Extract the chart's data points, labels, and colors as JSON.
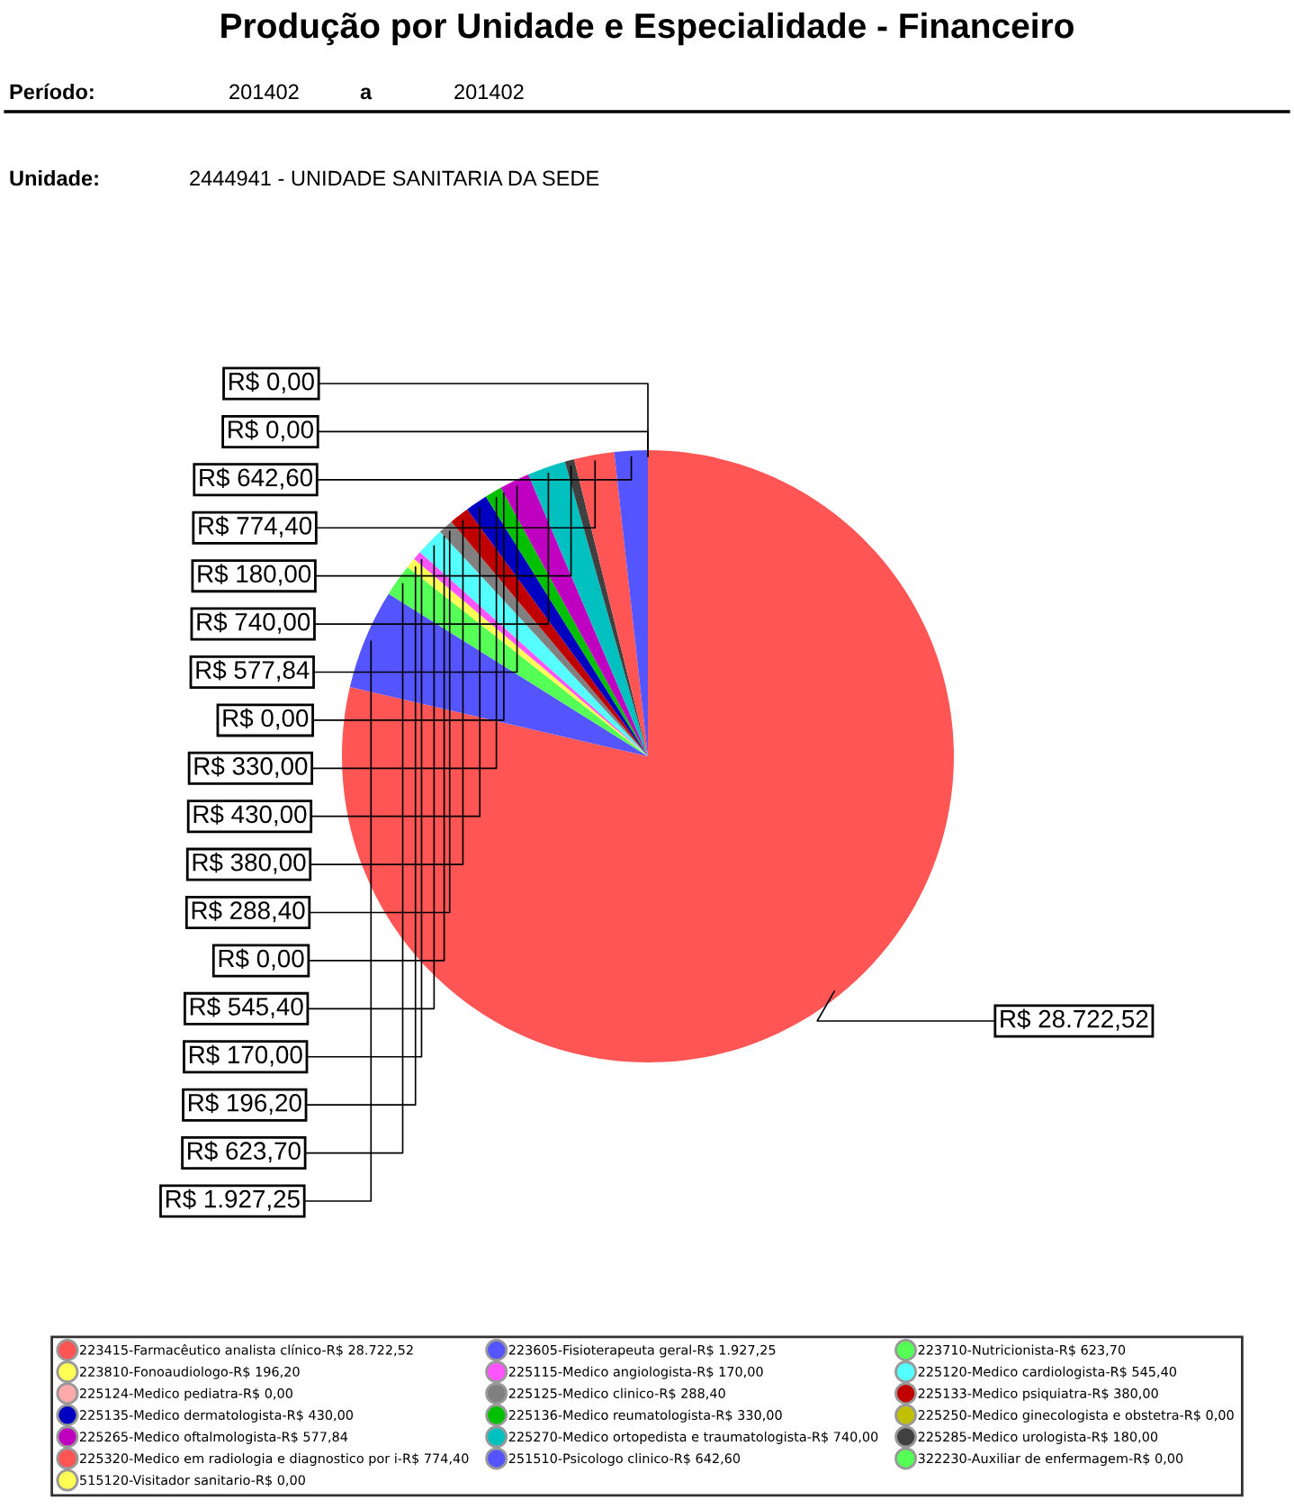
{
  "chart_data": {
    "type": "pie",
    "title": "Produção por Unidade e Especialidade - Financeiro",
    "annotations": [
      "Período:",
      "201402",
      "a",
      "201402",
      "Unidade:",
      "2444941 - UNIDADE SANITARIA DA SEDE"
    ],
    "categories": [
      "223415-Farmacêutico analista clínico-R$ 28.722,52",
      "223605-Fisioterapeuta geral-R$ 1.927,25",
      "223710-Nutricionista-R$ 623,70",
      "223810-Fonoaudiologo-R$ 196,20",
      "225115-Medico angiologista-R$ 170,00",
      "225120-Medico cardiologista-R$ 545,40",
      "225124-Medico pediatra-R$ 0,00",
      "225125-Medico clinico-R$ 288,40",
      "225133-Medico psiquiatra-R$ 380,00",
      "225135-Medico dermatologista-R$ 430,00",
      "225136-Medico reumatologista-R$ 330,00",
      "225250-Medico ginecologista e obstetra-R$ 0,00",
      "225265-Medico oftalmologista-R$ 577,84",
      "225270-Medico ortopedista e traumatologista-R$ 740,00",
      "225285-Medico urologista-R$ 180,00",
      "225320-Medico em radiologia e diagnostico por i-R$ 774,40",
      "251510-Psicologo clinico-R$ 642,60",
      "322230-Auxiliar de enfermagem-R$ 0,00",
      "515120-Visitador sanitario-R$ 0,00"
    ],
    "values": [
      28722.52,
      1927.25,
      623.7,
      196.2,
      170.0,
      545.4,
      0.0,
      288.4,
      380.0,
      430.0,
      330.0,
      0.0,
      577.84,
      740.0,
      180.0,
      774.4,
      642.6,
      0.0,
      0.0
    ],
    "value_labels": [
      "R$ 28.722,52",
      "R$ 1.927,25",
      "R$ 623,70",
      "R$ 196,20",
      "R$ 170,00",
      "R$ 545,40",
      "R$ 0,00",
      "R$ 288,40",
      "R$ 380,00",
      "R$ 430,00",
      "R$ 330,00",
      "R$ 0,00",
      "R$ 577,84",
      "R$ 740,00",
      "R$ 180,00",
      "R$ 774,40",
      "R$ 642,60",
      "R$ 0,00",
      "R$ 0,00"
    ],
    "colors": [
      "#ff5555",
      "#5555ff",
      "#55ff55",
      "#ffff55",
      "#ff55ff",
      "#55ffff",
      "#ffaaaa",
      "#808080",
      "#c00000",
      "#0000c0",
      "#00c000",
      "#c0c000",
      "#c000c0",
      "#00c0c0",
      "#404040",
      "#ff5555",
      "#5555ff",
      "#55ff55",
      "#ffff55"
    ],
    "legend": "bottom"
  }
}
